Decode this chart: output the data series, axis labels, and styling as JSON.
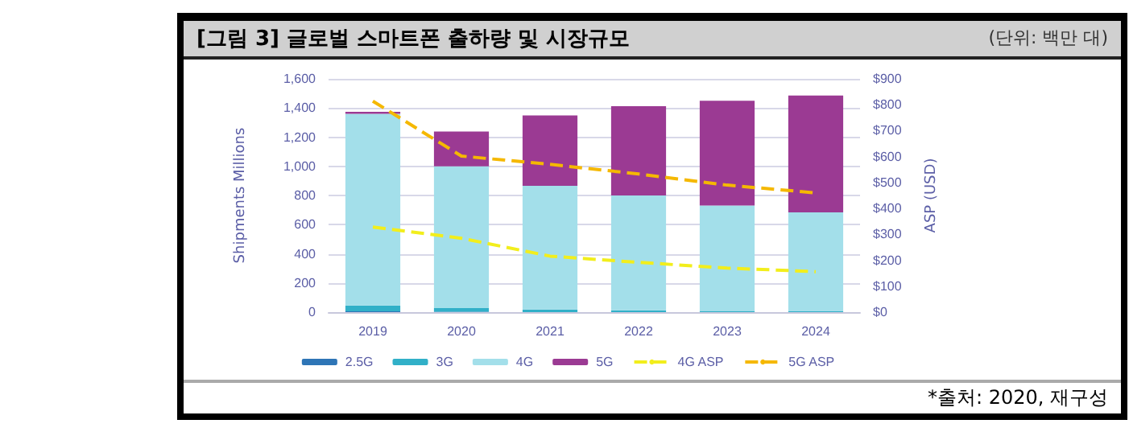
{
  "chart_data": {
    "type": "bar",
    "title": "[그림 3] 글로벌 스마트폰 출하량 및 시장규모",
    "subtitle": "(단위: 백만 대)",
    "ylabel": "Shipments Millions",
    "y2label": "ASP (USD)",
    "annotations": [
      "*출처: 2020, 재구성"
    ],
    "categories": [
      "2019",
      "2020",
      "2021",
      "2022",
      "2023",
      "2024"
    ],
    "stacked": true,
    "series": [
      {
        "name": "2.5G",
        "color": "#2e75b6",
        "values": [
          5,
          3,
          null,
          null,
          null,
          null
        ]
      },
      {
        "name": "3G",
        "color": "#31b0c8",
        "values": [
          40,
          25,
          18,
          12,
          8,
          5
        ]
      },
      {
        "name": "4G",
        "color": "#a3dfea",
        "values": [
          1315,
          972,
          848,
          788,
          723,
          679
        ]
      },
      {
        "name": "5G",
        "color": "#9b3a93",
        "values": [
          14,
          238,
          483,
          613,
          718,
          802
        ]
      },
      {
        "name": "4G ASP",
        "type": "line",
        "axis": "y2",
        "color": "#f2ee1c",
        "line_style": "dashed",
        "values": [
          328,
          285,
          216,
          192,
          170,
          156
        ]
      },
      {
        "name": "5G ASP",
        "type": "line",
        "axis": "y2",
        "color": "#f5b800",
        "line_style": "dashed",
        "values": [
          814,
          602,
          570,
          533,
          490,
          460
        ]
      }
    ],
    "ylim": [
      0,
      1600
    ],
    "yticks": [
      {
        "value": 0,
        "label": "0"
      },
      {
        "value": 200,
        "label": "200"
      },
      {
        "value": 400,
        "label": "400"
      },
      {
        "value": 600,
        "label": "600"
      },
      {
        "value": 800,
        "label": "800"
      },
      {
        "value": 1000,
        "label": "1,000"
      },
      {
        "value": 1200,
        "label": "1,200"
      },
      {
        "value": 1400,
        "label": "1,400"
      },
      {
        "value": 1600,
        "label": "1,600"
      }
    ],
    "y2lim": [
      0,
      900
    ],
    "y2ticks": [
      {
        "value": 0,
        "label": "$0"
      },
      {
        "value": 100,
        "label": "$100"
      },
      {
        "value": 200,
        "label": "$200"
      },
      {
        "value": 300,
        "label": "$300"
      },
      {
        "value": 400,
        "label": "$400"
      },
      {
        "value": 500,
        "label": "$500"
      },
      {
        "value": 600,
        "label": "$600"
      },
      {
        "value": 700,
        "label": "$700"
      },
      {
        "value": 800,
        "label": "$800"
      },
      {
        "value": 900,
        "label": "$900"
      }
    ],
    "grid": "y",
    "legend": "bottom",
    "marker": "none"
  }
}
